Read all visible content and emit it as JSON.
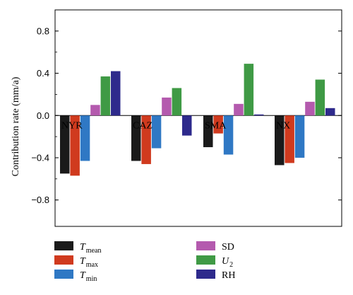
{
  "chart_data": {
    "type": "bar",
    "ylabel": "Contribution rate (mm/a)",
    "ylim": [
      -1.05,
      1.0
    ],
    "yticks": [
      {
        "value": 0.8,
        "label": "0.8"
      },
      {
        "value": 0.4,
        "label": "0.4"
      },
      {
        "value": 0.0,
        "label": "0.0"
      },
      {
        "value": -0.4,
        "label": "−0.4"
      },
      {
        "value": -0.8,
        "label": "−0.8"
      }
    ],
    "categories": [
      "NYR",
      "CAZ",
      "SMA",
      "NX"
    ],
    "series": [
      {
        "name": "T",
        "sub": "mean",
        "italic": true,
        "color": "#1a1a1a",
        "values": [
          -0.55,
          -0.43,
          -0.3,
          -0.47
        ]
      },
      {
        "name": "T",
        "sub": "max",
        "italic": true,
        "color": "#d03a1e",
        "values": [
          -0.57,
          -0.46,
          -0.17,
          -0.45
        ]
      },
      {
        "name": "T",
        "sub": "min",
        "italic": true,
        "color": "#2f78c4",
        "values": [
          -0.43,
          -0.31,
          -0.37,
          -0.4
        ]
      },
      {
        "name": "SD",
        "sub": "",
        "italic": false,
        "color": "#b45aae",
        "values": [
          0.1,
          0.17,
          0.11,
          0.13
        ]
      },
      {
        "name": "U",
        "sub": "2",
        "italic": true,
        "color": "#3f9a45",
        "values": [
          0.37,
          0.26,
          0.49,
          0.34
        ]
      },
      {
        "name": "RH",
        "sub": "",
        "italic": false,
        "color": "#2e2a8c",
        "values": [
          0.42,
          -0.19,
          0.01,
          0.07
        ]
      }
    ],
    "legend_placement": "bottom",
    "legend_order": [
      0,
      3,
      1,
      4,
      2,
      5
    ],
    "grid": false
  }
}
